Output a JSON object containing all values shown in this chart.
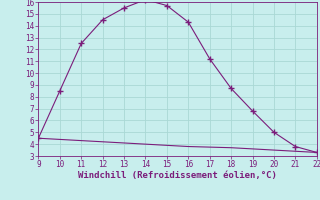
{
  "line1_x": [
    9,
    10,
    11,
    12,
    13,
    14,
    15,
    16,
    17,
    18,
    19,
    20,
    21,
    22
  ],
  "line1_y": [
    4.5,
    8.5,
    12.5,
    14.5,
    15.5,
    16.2,
    15.7,
    14.3,
    11.2,
    8.7,
    6.8,
    5.0,
    3.8,
    3.3
  ],
  "line2_x": [
    9,
    10,
    11,
    12,
    13,
    14,
    15,
    16,
    17,
    18,
    19,
    20,
    21,
    22
  ],
  "line2_y": [
    4.5,
    4.4,
    4.3,
    4.2,
    4.1,
    4.0,
    3.9,
    3.8,
    3.75,
    3.7,
    3.6,
    3.5,
    3.4,
    3.3
  ],
  "line_color": "#7b1d7b",
  "bg_color": "#c8eeed",
  "grid_color": "#aad8d5",
  "xlabel": "Windchill (Refroidissement éolien,°C)",
  "xlim": [
    9,
    22
  ],
  "ylim": [
    3,
    16
  ],
  "xticks": [
    9,
    10,
    11,
    12,
    13,
    14,
    15,
    16,
    17,
    18,
    19,
    20,
    21,
    22
  ],
  "yticks": [
    3,
    4,
    5,
    6,
    7,
    8,
    9,
    10,
    11,
    12,
    13,
    14,
    15,
    16
  ],
  "tick_color": "#7b1d7b",
  "label_color": "#7b1d7b",
  "xlabel_fontsize": 6.5,
  "tick_fontsize": 5.5,
  "marker": "+",
  "markersize": 4
}
